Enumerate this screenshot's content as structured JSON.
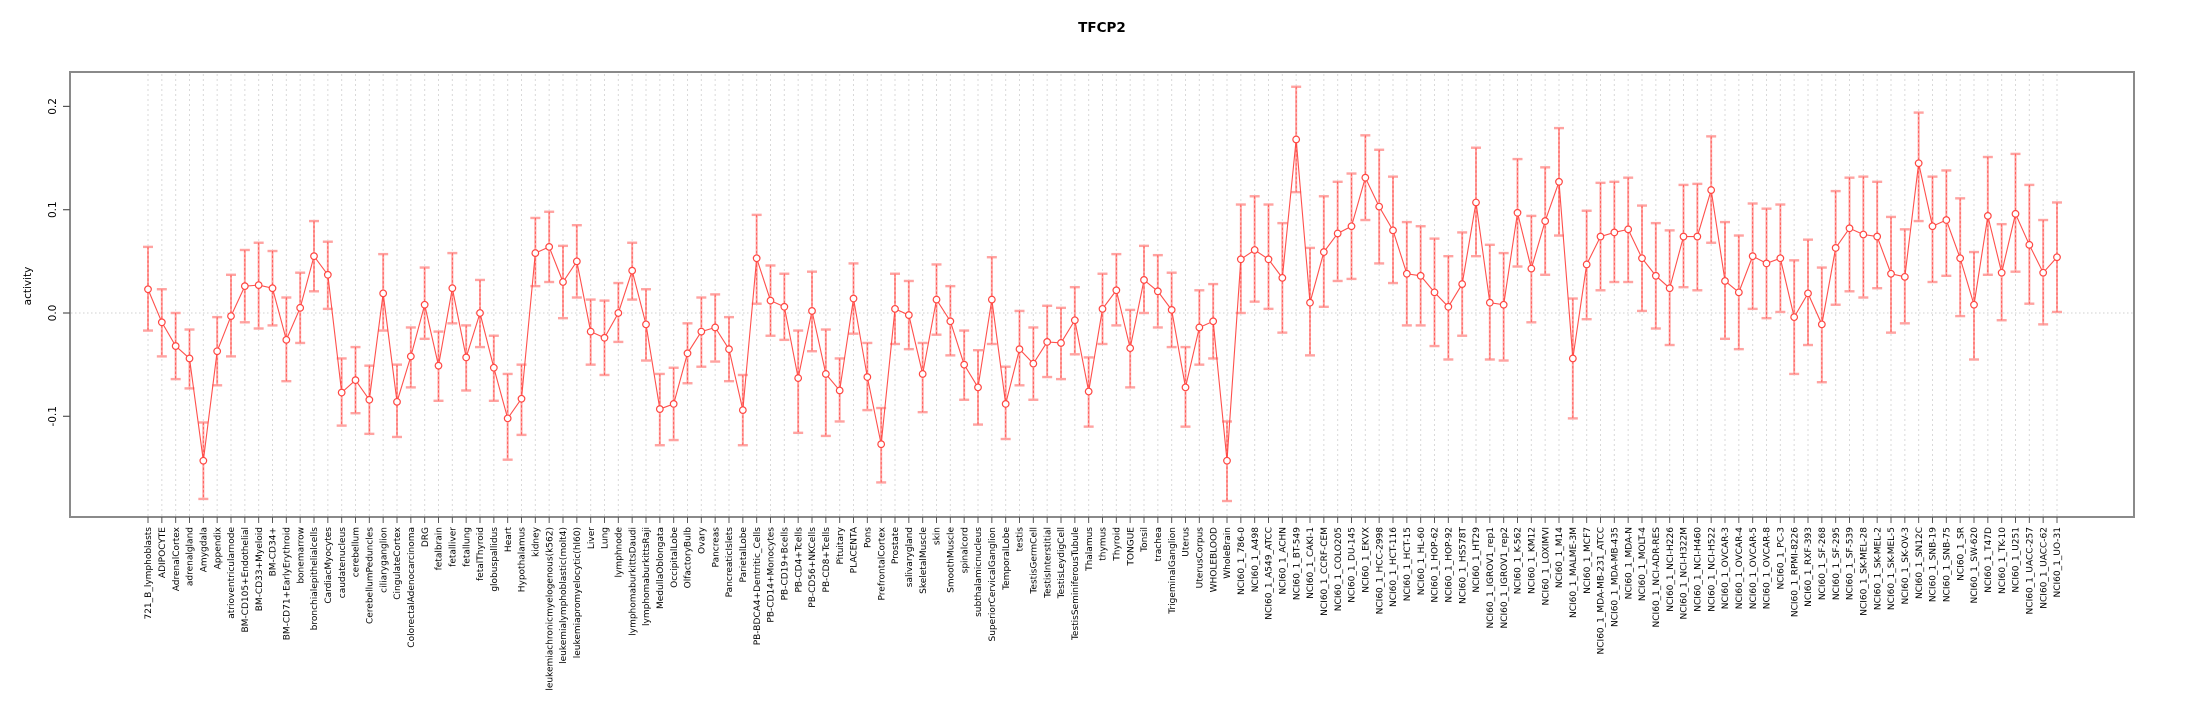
{
  "page": {
    "background": "#ffffff"
  },
  "chart_data": {
    "type": "line",
    "title": "TFCP2",
    "xlabel": "",
    "ylabel": "activity",
    "legend": "none",
    "grid": "vertical dashed gridline per category; dotted horizontal line at 0",
    "ylim": [
      -0.197,
      0.233
    ],
    "yticks": [
      {
        "label": "0.2",
        "value": 0.2
      },
      {
        "label": "0.1",
        "value": 0.1
      },
      {
        "label": "0.0",
        "value": 0.0
      },
      {
        "label": "-0.1",
        "value": -0.1
      }
    ],
    "series_name": "activity with error bars",
    "point_color": "#ff4742",
    "line_color": "#ff4742",
    "errorbar_color": "#ffa3a1",
    "gridline_color": "#d9d9d9",
    "box_color": "#8a8a8a",
    "points": [
      {
        "label": "721_B_lymphoblasts",
        "value": 0.023,
        "lo": -0.017,
        "hi": 0.064
      },
      {
        "label": "ADIPOCYTE",
        "value": -0.009,
        "lo": -0.042,
        "hi": 0.023
      },
      {
        "label": "AdrenalCortex",
        "value": -0.032,
        "lo": -0.064,
        "hi": 0.0
      },
      {
        "label": "adrenalgland",
        "value": -0.044,
        "lo": -0.073,
        "hi": -0.016
      },
      {
        "label": "Amygdala",
        "value": -0.143,
        "lo": -0.18,
        "hi": -0.106
      },
      {
        "label": "Appendix",
        "value": -0.037,
        "lo": -0.07,
        "hi": -0.004
      },
      {
        "label": "atrioventricularnode",
        "value": -0.003,
        "lo": -0.042,
        "hi": 0.037
      },
      {
        "label": "BM-CD105+Endothelial",
        "value": 0.026,
        "lo": -0.009,
        "hi": 0.061
      },
      {
        "label": "BM-CD33+Myeloid",
        "value": 0.027,
        "lo": -0.015,
        "hi": 0.068
      },
      {
        "label": "BM-CD34+",
        "value": 0.024,
        "lo": -0.012,
        "hi": 0.06
      },
      {
        "label": "BM-CD71+EarlyErythroid",
        "value": -0.026,
        "lo": -0.066,
        "hi": 0.015
      },
      {
        "label": "bonemarrow",
        "value": 0.005,
        "lo": -0.029,
        "hi": 0.039
      },
      {
        "label": "bronchialepithelialcells",
        "value": 0.055,
        "lo": 0.021,
        "hi": 0.089
      },
      {
        "label": "CardiacMyocytes",
        "value": 0.037,
        "lo": 0.004,
        "hi": 0.069
      },
      {
        "label": "caudatenucleus",
        "value": -0.077,
        "lo": -0.109,
        "hi": -0.044
      },
      {
        "label": "cerebellum",
        "value": -0.065,
        "lo": -0.097,
        "hi": -0.033
      },
      {
        "label": "CerebellumPeduncles",
        "value": -0.084,
        "lo": -0.117,
        "hi": -0.051
      },
      {
        "label": "ciliaryganglion",
        "value": 0.019,
        "lo": -0.017,
        "hi": 0.057
      },
      {
        "label": "CingulateCortex",
        "value": -0.086,
        "lo": -0.12,
        "hi": -0.05
      },
      {
        "label": "ColorectalAdenocarcinoma",
        "value": -0.042,
        "lo": -0.072,
        "hi": -0.014
      },
      {
        "label": "DRG",
        "value": 0.008,
        "lo": -0.025,
        "hi": 0.044
      },
      {
        "label": "fetalbrain",
        "value": -0.051,
        "lo": -0.085,
        "hi": -0.018
      },
      {
        "label": "fetalliver",
        "value": 0.024,
        "lo": -0.01,
        "hi": 0.058
      },
      {
        "label": "fetallung",
        "value": -0.043,
        "lo": -0.075,
        "hi": -0.012
      },
      {
        "label": "fetalThyroid",
        "value": 0.0,
        "lo": -0.033,
        "hi": 0.032
      },
      {
        "label": "globuspallidus",
        "value": -0.053,
        "lo": -0.085,
        "hi": -0.022
      },
      {
        "label": "Heart",
        "value": -0.102,
        "lo": -0.142,
        "hi": -0.059
      },
      {
        "label": "Hypothalamus",
        "value": -0.083,
        "lo": -0.118,
        "hi": -0.05
      },
      {
        "label": "kidney",
        "value": 0.058,
        "lo": 0.026,
        "hi": 0.092
      },
      {
        "label": "leukemiachronicmyelogenous(k562)",
        "value": 0.064,
        "lo": 0.03,
        "hi": 0.098
      },
      {
        "label": "leukemialymphoblastic(molt4)",
        "value": 0.03,
        "lo": -0.005,
        "hi": 0.065
      },
      {
        "label": "leukemiapromyelocytic(hl60)",
        "value": 0.05,
        "lo": 0.015,
        "hi": 0.085
      },
      {
        "label": "Liver",
        "value": -0.018,
        "lo": -0.05,
        "hi": 0.013
      },
      {
        "label": "Lung",
        "value": -0.024,
        "lo": -0.06,
        "hi": 0.012
      },
      {
        "label": "lymphnode",
        "value": 0.0,
        "lo": -0.028,
        "hi": 0.029
      },
      {
        "label": "lymphomaburkittsDaudi",
        "value": 0.041,
        "lo": 0.013,
        "hi": 0.068
      },
      {
        "label": "lymphomaburkittsRaji",
        "value": -0.011,
        "lo": -0.046,
        "hi": 0.023
      },
      {
        "label": "MedullaOblongata",
        "value": -0.093,
        "lo": -0.128,
        "hi": -0.059
      },
      {
        "label": "OccipitalLobe",
        "value": -0.088,
        "lo": -0.123,
        "hi": -0.053
      },
      {
        "label": "OlfactoryBulb",
        "value": -0.039,
        "lo": -0.068,
        "hi": -0.01
      },
      {
        "label": "Ovary",
        "value": -0.018,
        "lo": -0.052,
        "hi": 0.015
      },
      {
        "label": "Pancreas",
        "value": -0.014,
        "lo": -0.047,
        "hi": 0.018
      },
      {
        "label": "PancreaticIslets",
        "value": -0.035,
        "lo": -0.066,
        "hi": -0.004
      },
      {
        "label": "ParietalLobe",
        "value": -0.094,
        "lo": -0.128,
        "hi": -0.06
      },
      {
        "label": "PB-BDCA4+Dentritic_Cells",
        "value": 0.053,
        "lo": 0.009,
        "hi": 0.095
      },
      {
        "label": "PB-CD14+Monocytes",
        "value": 0.012,
        "lo": -0.022,
        "hi": 0.046
      },
      {
        "label": "PB-CD19+Bcells",
        "value": 0.006,
        "lo": -0.026,
        "hi": 0.038
      },
      {
        "label": "PB-CD4+Tcells",
        "value": -0.063,
        "lo": -0.116,
        "hi": -0.017
      },
      {
        "label": "PB-CD56+NKCells",
        "value": 0.002,
        "lo": -0.037,
        "hi": 0.04
      },
      {
        "label": "PB-CD8+Tcells",
        "value": -0.059,
        "lo": -0.119,
        "hi": -0.016
      },
      {
        "label": "Pituitary",
        "value": -0.075,
        "lo": -0.105,
        "hi": -0.044
      },
      {
        "label": "PLACENTA",
        "value": 0.014,
        "lo": -0.02,
        "hi": 0.048
      },
      {
        "label": "Pons",
        "value": -0.062,
        "lo": -0.094,
        "hi": -0.029
      },
      {
        "label": "PrefrontalCortex",
        "value": -0.127,
        "lo": -0.164,
        "hi": -0.092
      },
      {
        "label": "Prostate",
        "value": 0.004,
        "lo": -0.03,
        "hi": 0.038
      },
      {
        "label": "salivarygland",
        "value": -0.002,
        "lo": -0.035,
        "hi": 0.031
      },
      {
        "label": "SkeletalMuscle",
        "value": -0.059,
        "lo": -0.096,
        "hi": -0.029
      },
      {
        "label": "skin",
        "value": 0.013,
        "lo": -0.021,
        "hi": 0.047
      },
      {
        "label": "SmoothMuscle",
        "value": -0.008,
        "lo": -0.041,
        "hi": 0.026
      },
      {
        "label": "spinalcord",
        "value": -0.05,
        "lo": -0.084,
        "hi": -0.017
      },
      {
        "label": "subthalamicnucleus",
        "value": -0.072,
        "lo": -0.108,
        "hi": -0.036
      },
      {
        "label": "SuperiorCervicalGanglion",
        "value": 0.013,
        "lo": -0.03,
        "hi": 0.054
      },
      {
        "label": "TemporalLobe",
        "value": -0.088,
        "lo": -0.122,
        "hi": -0.052
      },
      {
        "label": "testis",
        "value": -0.035,
        "lo": -0.07,
        "hi": 0.002
      },
      {
        "label": "TestisGermCell",
        "value": -0.049,
        "lo": -0.084,
        "hi": -0.014
      },
      {
        "label": "TestisInterstitial",
        "value": -0.028,
        "lo": -0.062,
        "hi": 0.007
      },
      {
        "label": "TestisLeydigCell",
        "value": -0.029,
        "lo": -0.064,
        "hi": 0.005
      },
      {
        "label": "TestisSeminiferousTubule",
        "value": -0.007,
        "lo": -0.04,
        "hi": 0.025
      },
      {
        "label": "Thalamus",
        "value": -0.076,
        "lo": -0.11,
        "hi": -0.043
      },
      {
        "label": "thymus",
        "value": 0.004,
        "lo": -0.03,
        "hi": 0.038
      },
      {
        "label": "Thyroid",
        "value": 0.022,
        "lo": -0.012,
        "hi": 0.057
      },
      {
        "label": "TONGUE",
        "value": -0.034,
        "lo": -0.072,
        "hi": 0.003
      },
      {
        "label": "Tonsil",
        "value": 0.032,
        "lo": 0.0,
        "hi": 0.065
      },
      {
        "label": "trachea",
        "value": 0.021,
        "lo": -0.014,
        "hi": 0.056
      },
      {
        "label": "TrigeminalGanglion",
        "value": 0.003,
        "lo": -0.033,
        "hi": 0.039
      },
      {
        "label": "Uterus",
        "value": -0.072,
        "lo": -0.11,
        "hi": -0.033
      },
      {
        "label": "UterusCorpus",
        "value": -0.014,
        "lo": -0.05,
        "hi": 0.022
      },
      {
        "label": "WHOLEBLOOD",
        "value": -0.008,
        "lo": -0.044,
        "hi": 0.028
      },
      {
        "label": "WholeBrain",
        "value": -0.143,
        "lo": -0.182,
        "hi": -0.105
      },
      {
        "label": "NCI60_1_786-0",
        "value": 0.052,
        "lo": 0.0,
        "hi": 0.105
      },
      {
        "label": "NCI60_1_A498",
        "value": 0.061,
        "lo": 0.011,
        "hi": 0.113
      },
      {
        "label": "NCI60_1_A549_ATCC",
        "value": 0.052,
        "lo": 0.004,
        "hi": 0.105
      },
      {
        "label": "NCI60_1_ACHN",
        "value": 0.034,
        "lo": -0.019,
        "hi": 0.087
      },
      {
        "label": "NCI60_1_BT-549",
        "value": 0.168,
        "lo": 0.117,
        "hi": 0.219
      },
      {
        "label": "NCI60_1_CAKI-1",
        "value": 0.01,
        "lo": -0.041,
        "hi": 0.063
      },
      {
        "label": "NCI60_1_CCRF-CEM",
        "value": 0.059,
        "lo": 0.006,
        "hi": 0.113
      },
      {
        "label": "NCI60_1_COLO205",
        "value": 0.077,
        "lo": 0.031,
        "hi": 0.127
      },
      {
        "label": "NCI60_1_DU-145",
        "value": 0.084,
        "lo": 0.033,
        "hi": 0.135
      },
      {
        "label": "NCI60_1_EKVX",
        "value": 0.131,
        "lo": 0.09,
        "hi": 0.172
      },
      {
        "label": "NCI60_1_HCC-2998",
        "value": 0.103,
        "lo": 0.048,
        "hi": 0.158
      },
      {
        "label": "NCI60_1_HCT-116",
        "value": 0.08,
        "lo": 0.029,
        "hi": 0.132
      },
      {
        "label": "NCI60_1_HCT-15",
        "value": 0.038,
        "lo": -0.012,
        "hi": 0.088
      },
      {
        "label": "NCI60_1_HL-60",
        "value": 0.036,
        "lo": -0.012,
        "hi": 0.084
      },
      {
        "label": "NCI60_1_HOP-62",
        "value": 0.02,
        "lo": -0.032,
        "hi": 0.072
      },
      {
        "label": "NCI60_1_HOP-92",
        "value": 0.006,
        "lo": -0.045,
        "hi": 0.055
      },
      {
        "label": "NCI60_1_HS578T",
        "value": 0.028,
        "lo": -0.022,
        "hi": 0.078
      },
      {
        "label": "NCI60_1_HT29",
        "value": 0.107,
        "lo": 0.055,
        "hi": 0.16
      },
      {
        "label": "NCI60_1_IGROV1_rep1",
        "value": 0.01,
        "lo": -0.045,
        "hi": 0.066
      },
      {
        "label": "NCI60_1_IGROV1_rep2",
        "value": 0.008,
        "lo": -0.046,
        "hi": 0.058
      },
      {
        "label": "NCI60_1_K-562",
        "value": 0.097,
        "lo": 0.045,
        "hi": 0.149
      },
      {
        "label": "NCI60_1_KM12",
        "value": 0.043,
        "lo": -0.009,
        "hi": 0.094
      },
      {
        "label": "NCI60_1_LOXIMVI",
        "value": 0.089,
        "lo": 0.037,
        "hi": 0.141
      },
      {
        "label": "NCI60_1_M14",
        "value": 0.127,
        "lo": 0.075,
        "hi": 0.179
      },
      {
        "label": "NCI60_1_MALME-3M",
        "value": -0.044,
        "lo": -0.102,
        "hi": 0.014
      },
      {
        "label": "NCI60_1_MCF7",
        "value": 0.047,
        "lo": -0.006,
        "hi": 0.099
      },
      {
        "label": "NCI60_1_MDA-MB-231_ATCC",
        "value": 0.074,
        "lo": 0.022,
        "hi": 0.126
      },
      {
        "label": "NCI60_1_MDA-MB-435",
        "value": 0.078,
        "lo": 0.03,
        "hi": 0.127
      },
      {
        "label": "NCI60_1_MDA-N",
        "value": 0.081,
        "lo": 0.03,
        "hi": 0.131
      },
      {
        "label": "NCI60_1_MOLT-4",
        "value": 0.053,
        "lo": 0.002,
        "hi": 0.104
      },
      {
        "label": "NCI60_1_NCI-ADR-RES",
        "value": 0.036,
        "lo": -0.015,
        "hi": 0.087
      },
      {
        "label": "NCI60_1_NCI-H226",
        "value": 0.024,
        "lo": -0.031,
        "hi": 0.08
      },
      {
        "label": "NCI60_1_NCI-H322M",
        "value": 0.074,
        "lo": 0.025,
        "hi": 0.124
      },
      {
        "label": "NCI60_1_NCI-H460",
        "value": 0.074,
        "lo": 0.022,
        "hi": 0.125
      },
      {
        "label": "NCI60_1_NCI-H522",
        "value": 0.119,
        "lo": 0.068,
        "hi": 0.171
      },
      {
        "label": "NCI60_1_OVCAR-3",
        "value": 0.031,
        "lo": -0.025,
        "hi": 0.088
      },
      {
        "label": "NCI60_1_OVCAR-4",
        "value": 0.02,
        "lo": -0.035,
        "hi": 0.075
      },
      {
        "label": "NCI60_1_OVCAR-5",
        "value": 0.055,
        "lo": 0.004,
        "hi": 0.106
      },
      {
        "label": "NCI60_1_OVCAR-8",
        "value": 0.048,
        "lo": -0.005,
        "hi": 0.101
      },
      {
        "label": "NCI60_1_PC-3",
        "value": 0.053,
        "lo": 0.001,
        "hi": 0.105
      },
      {
        "label": "NCI60_1_RPMI-8226",
        "value": -0.004,
        "lo": -0.059,
        "hi": 0.051
      },
      {
        "label": "NCI60_1_RXF-393",
        "value": 0.019,
        "lo": -0.031,
        "hi": 0.071
      },
      {
        "label": "NCI60_1_SF-268",
        "value": -0.011,
        "lo": -0.067,
        "hi": 0.044
      },
      {
        "label": "NCI60_1_SF-295",
        "value": 0.063,
        "lo": 0.008,
        "hi": 0.118
      },
      {
        "label": "NCI60_1_SF-539",
        "value": 0.082,
        "lo": 0.021,
        "hi": 0.131
      },
      {
        "label": "NCI60_1_SK-MEL-28",
        "value": 0.076,
        "lo": 0.015,
        "hi": 0.132
      },
      {
        "label": "NCI60_1_SK-MEL-2",
        "value": 0.074,
        "lo": 0.024,
        "hi": 0.127
      },
      {
        "label": "NCI60_1_SK-MEL-5",
        "value": 0.038,
        "lo": -0.019,
        "hi": 0.093
      },
      {
        "label": "NCI60_1_SK-OV-3",
        "value": 0.035,
        "lo": -0.01,
        "hi": 0.081
      },
      {
        "label": "NCI60_1_SN12C",
        "value": 0.145,
        "lo": 0.089,
        "hi": 0.194
      },
      {
        "label": "NCI60_1_SNB-19",
        "value": 0.084,
        "lo": 0.03,
        "hi": 0.132
      },
      {
        "label": "NCI60_1_SNB-75",
        "value": 0.09,
        "lo": 0.036,
        "hi": 0.138
      },
      {
        "label": "NCI60_1_SR",
        "value": 0.053,
        "lo": -0.003,
        "hi": 0.111
      },
      {
        "label": "NCI60_1_SW-620",
        "value": 0.008,
        "lo": -0.045,
        "hi": 0.059
      },
      {
        "label": "NCI60_1_T47D",
        "value": 0.094,
        "lo": 0.037,
        "hi": 0.151
      },
      {
        "label": "NCI60_1_TK-10",
        "value": 0.039,
        "lo": -0.007,
        "hi": 0.086
      },
      {
        "label": "NCI60_1_U251",
        "value": 0.096,
        "lo": 0.04,
        "hi": 0.154
      },
      {
        "label": "NCI60_1_UACC-257",
        "value": 0.066,
        "lo": 0.009,
        "hi": 0.124
      },
      {
        "label": "NCI60_1_UACC-62",
        "value": 0.039,
        "lo": -0.011,
        "hi": 0.09
      },
      {
        "label": "NCI60_1_UO-31",
        "value": 0.054,
        "lo": 0.001,
        "hi": 0.107
      }
    ]
  }
}
